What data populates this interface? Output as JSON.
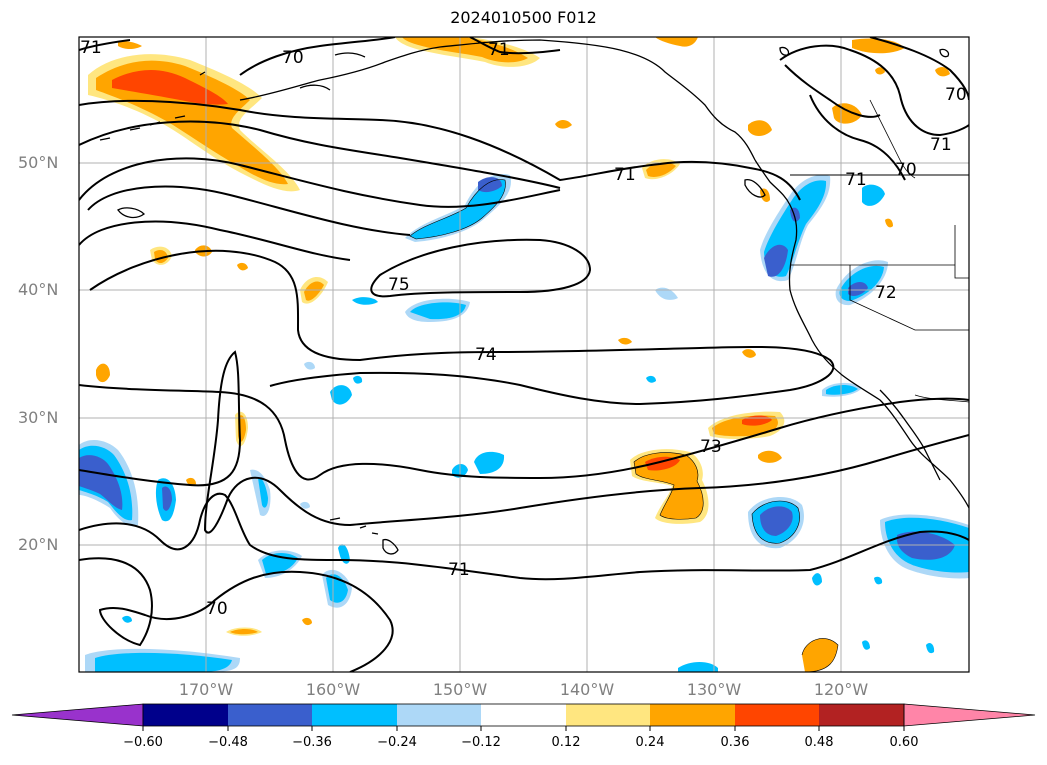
{
  "title": "2024010500 F012",
  "map": {
    "projection": "plate-carree",
    "lon_range": [
      -180,
      -110
    ],
    "lat_range": [
      10,
      60
    ],
    "grid": true,
    "lat_ticks": [
      "50°N",
      "40°N",
      "30°N",
      "20°N"
    ],
    "lon_ticks": [
      "170°W",
      "160°W",
      "150°W",
      "140°W",
      "130°W",
      "120°W"
    ],
    "contour_labels": [
      "71",
      "70",
      "71",
      "71",
      "70",
      "71",
      "71",
      "70",
      "75",
      "74",
      "72",
      "73",
      "71",
      "70"
    ]
  },
  "colorbar": {
    "orientation": "horizontal",
    "extend": "both",
    "colors": [
      "#9932cc",
      "#00008b",
      "#3a5fcd",
      "#00bfff",
      "#add8f7",
      "#ffffff",
      "#ffe680",
      "#ffa500",
      "#ff4500",
      "#b22222",
      "#ff85a8"
    ],
    "tick_labels": [
      "−0.60",
      "−0.48",
      "−0.36",
      "−0.24",
      "−0.12",
      "0.12",
      "0.24",
      "0.36",
      "0.48",
      "0.60"
    ]
  },
  "colors": {
    "positive_fill": "#ffa500",
    "positive_strong": "#ff4500",
    "positive_weak": "#ffe680",
    "negative_fill": "#00bfff",
    "negative_strong": "#3a5fcd",
    "negative_weak": "#add8f7",
    "gridline": "#b0b0b0",
    "contour": "#000000"
  }
}
